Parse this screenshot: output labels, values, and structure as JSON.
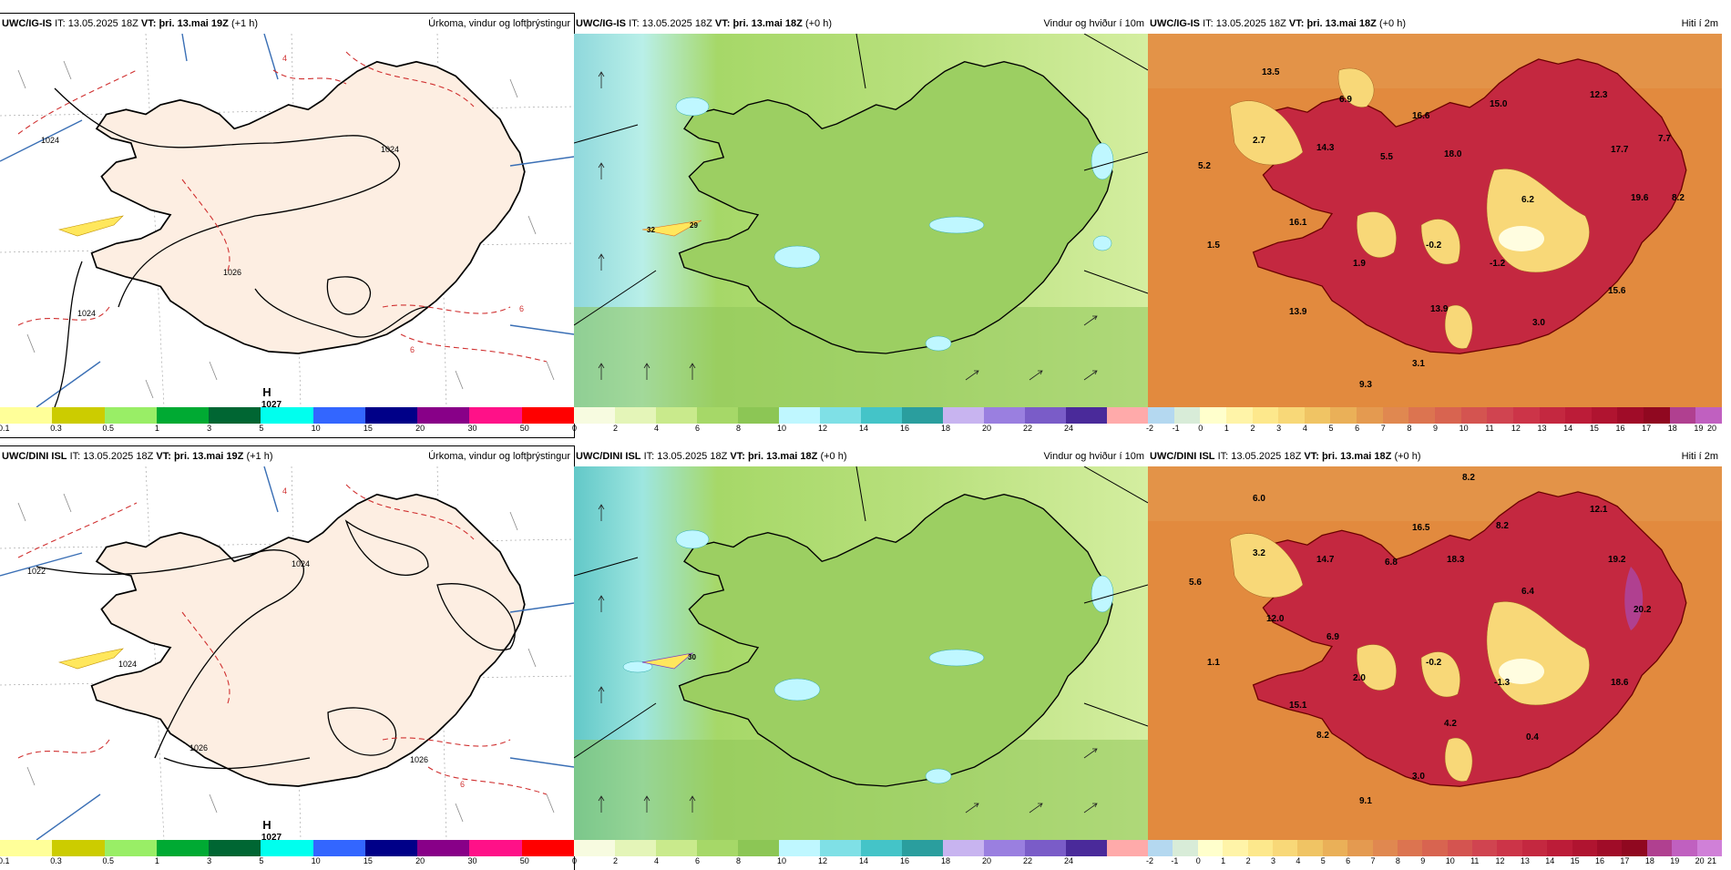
{
  "panels": [
    {
      "id": "r1p",
      "model": "UWC/IG-IS",
      "it_label": "IT:",
      "it": "13.05.2025 18Z",
      "vt_label": "VT:",
      "vt": "þri. 13.mai 19Z",
      "lead": "(+1 h)",
      "desc": "Úrkoma, vindur og loftþrýstingur",
      "map_labels": {
        "high": "H",
        "high_value": "1027",
        "isobars": [
          "1024",
          "1024",
          "1026",
          "1024"
        ],
        "precip": [
          "4",
          "6",
          "6"
        ]
      },
      "scale": {
        "labels": [
          "0.1",
          "0.3",
          "0.5",
          "1",
          "3",
          "5",
          "10",
          "15",
          "20",
          "30",
          "50"
        ],
        "colors": [
          "#ffff99",
          "#cccc00",
          "#99ee66",
          "#00aa33",
          "#006633",
          "#00ffee",
          "#3366ff",
          "#000088",
          "#880088",
          "#ff1188",
          "#ff0000"
        ]
      }
    },
    {
      "id": "r1w",
      "model": "UWC/IG-IS",
      "it_label": "IT:",
      "it": "13.05.2025 18Z",
      "vt_label": "VT:",
      "vt": "þri. 13.mai 18Z",
      "lead": "(+0 h)",
      "desc": "Vindur og hviður í 10m",
      "map_labels": {
        "gusts": [
          "32",
          "29"
        ]
      },
      "scale": {
        "labels": [
          "0",
          "2",
          "4",
          "6",
          "8",
          "10",
          "12",
          "14",
          "16",
          "18",
          "20",
          "22",
          "24"
        ],
        "colors": [
          "#f7fbe0",
          "#e4f5b8",
          "#c9ea8c",
          "#a6d868",
          "#8cc655",
          "#bff7ff",
          "#7fe0e6",
          "#44c4c8",
          "#2a9e9e",
          "#c8b4f0",
          "#9a7fe0",
          "#7a5cc8",
          "#4a2a9a",
          "#ffaaaa"
        ]
      }
    },
    {
      "id": "r1t",
      "model": "UWC/IG-IS",
      "it_label": "IT:",
      "it": "13.05.2025 18Z",
      "vt_label": "VT:",
      "vt": "þri. 13.mai 18Z",
      "lead": "(+0 h)",
      "desc": "Hiti í 2m",
      "map_labels": {
        "temps": [
          "13.5",
          "6.9",
          "12.3",
          "15.0",
          "2.7",
          "14.3",
          "16.6",
          "7.7",
          "5.2",
          "5.5",
          "18.0",
          "17.7",
          "6.2",
          "19.6",
          "8.2",
          "16.1",
          "1.5",
          "1.9",
          "-0.2",
          "-1.2",
          "15.6",
          "13.9",
          "13.9",
          "3.0",
          "3.1",
          "9.3"
        ]
      },
      "scale": {
        "labels": [
          "-2",
          "-1",
          "0",
          "1",
          "2",
          "3",
          "4",
          "5",
          "6",
          "7",
          "8",
          "9",
          "10",
          "11",
          "12",
          "13",
          "14",
          "15",
          "16",
          "17",
          "18",
          "19",
          "20"
        ],
        "colors": [
          "#b4d8f0",
          "#d8ecd8",
          "#ffffcc",
          "#fff4a8",
          "#fde88c",
          "#f8d878",
          "#f0c464",
          "#eab058",
          "#e49a50",
          "#e08850",
          "#dc7450",
          "#d86450",
          "#d45450",
          "#d04450",
          "#cc3448",
          "#c42840",
          "#bc1c38",
          "#b01430",
          "#a00c28",
          "#900820",
          "#b04090",
          "#c060c0"
        ]
      }
    },
    {
      "id": "r2p",
      "model": "UWC/DINI ISL",
      "it_label": "IT:",
      "it": "13.05.2025 18Z",
      "vt_label": "VT:",
      "vt": "þri. 13.mai 19Z",
      "lead": "(+1 h)",
      "desc": "Úrkoma, vindur og loftþrýstingur",
      "map_labels": {
        "high": "H",
        "high_value": "1027",
        "isobars": [
          "1022",
          "1024",
          "1024",
          "1026",
          "1026"
        ],
        "precip": [
          "4",
          "6"
        ]
      },
      "scale": {
        "labels": [
          "0.1",
          "0.3",
          "0.5",
          "1",
          "3",
          "5",
          "10",
          "15",
          "20",
          "30",
          "50"
        ],
        "colors": [
          "#ffff99",
          "#cccc00",
          "#99ee66",
          "#00aa33",
          "#006633",
          "#00ffee",
          "#3366ff",
          "#000088",
          "#880088",
          "#ff1188",
          "#ff0000"
        ]
      }
    },
    {
      "id": "r2w",
      "model": "UWC/DINI ISL",
      "it_label": "IT:",
      "it": "13.05.2025 18Z",
      "vt_label": "VT:",
      "vt": "þri. 13.mai 18Z",
      "lead": "(+0 h)",
      "desc": "Vindur og hviður í 10m",
      "map_labels": {
        "gusts": [
          "30"
        ]
      },
      "scale": {
        "labels": [
          "0",
          "2",
          "4",
          "6",
          "8",
          "10",
          "12",
          "14",
          "16",
          "18",
          "20",
          "22",
          "24"
        ],
        "colors": [
          "#f7fbe0",
          "#e4f5b8",
          "#c9ea8c",
          "#a6d868",
          "#8cc655",
          "#bff7ff",
          "#7fe0e6",
          "#44c4c8",
          "#2a9e9e",
          "#c8b4f0",
          "#9a7fe0",
          "#7a5cc8",
          "#4a2a9a",
          "#ffaaaa"
        ]
      }
    },
    {
      "id": "r2t",
      "model": "UWC/DINI ISL",
      "it_label": "IT:",
      "it": "13.05.2025 18Z",
      "vt_label": "VT:",
      "vt": "þri. 13.mai 18Z",
      "lead": "(+0 h)",
      "desc": "Hiti í 2m",
      "map_labels": {
        "temps": [
          "8.2",
          "6.0",
          "12.1",
          "16.5",
          "8.2",
          "3.2",
          "14.7",
          "6.8",
          "18.3",
          "19.2",
          "5.6",
          "6.4",
          "20.2",
          "12.0",
          "6.9",
          "1.1",
          "2.0",
          "-0.2",
          "-1.3",
          "18.6",
          "15.1",
          "4.2",
          "0.4",
          "8.2",
          "3.0",
          "9.1"
        ]
      },
      "scale": {
        "labels": [
          "-2",
          "-1",
          "0",
          "1",
          "2",
          "3",
          "4",
          "5",
          "6",
          "7",
          "8",
          "9",
          "10",
          "11",
          "12",
          "13",
          "14",
          "15",
          "16",
          "17",
          "18",
          "19",
          "20",
          "21"
        ],
        "colors": [
          "#b4d8f0",
          "#d8ecd8",
          "#ffffcc",
          "#fff4a8",
          "#fde88c",
          "#f8d878",
          "#f0c464",
          "#eab058",
          "#e49a50",
          "#e08850",
          "#dc7450",
          "#d86450",
          "#d45450",
          "#d04450",
          "#cc3448",
          "#c42840",
          "#bc1c38",
          "#b01430",
          "#a00c28",
          "#900820",
          "#b04090",
          "#c060c0",
          "#d080d8"
        ]
      }
    }
  ]
}
